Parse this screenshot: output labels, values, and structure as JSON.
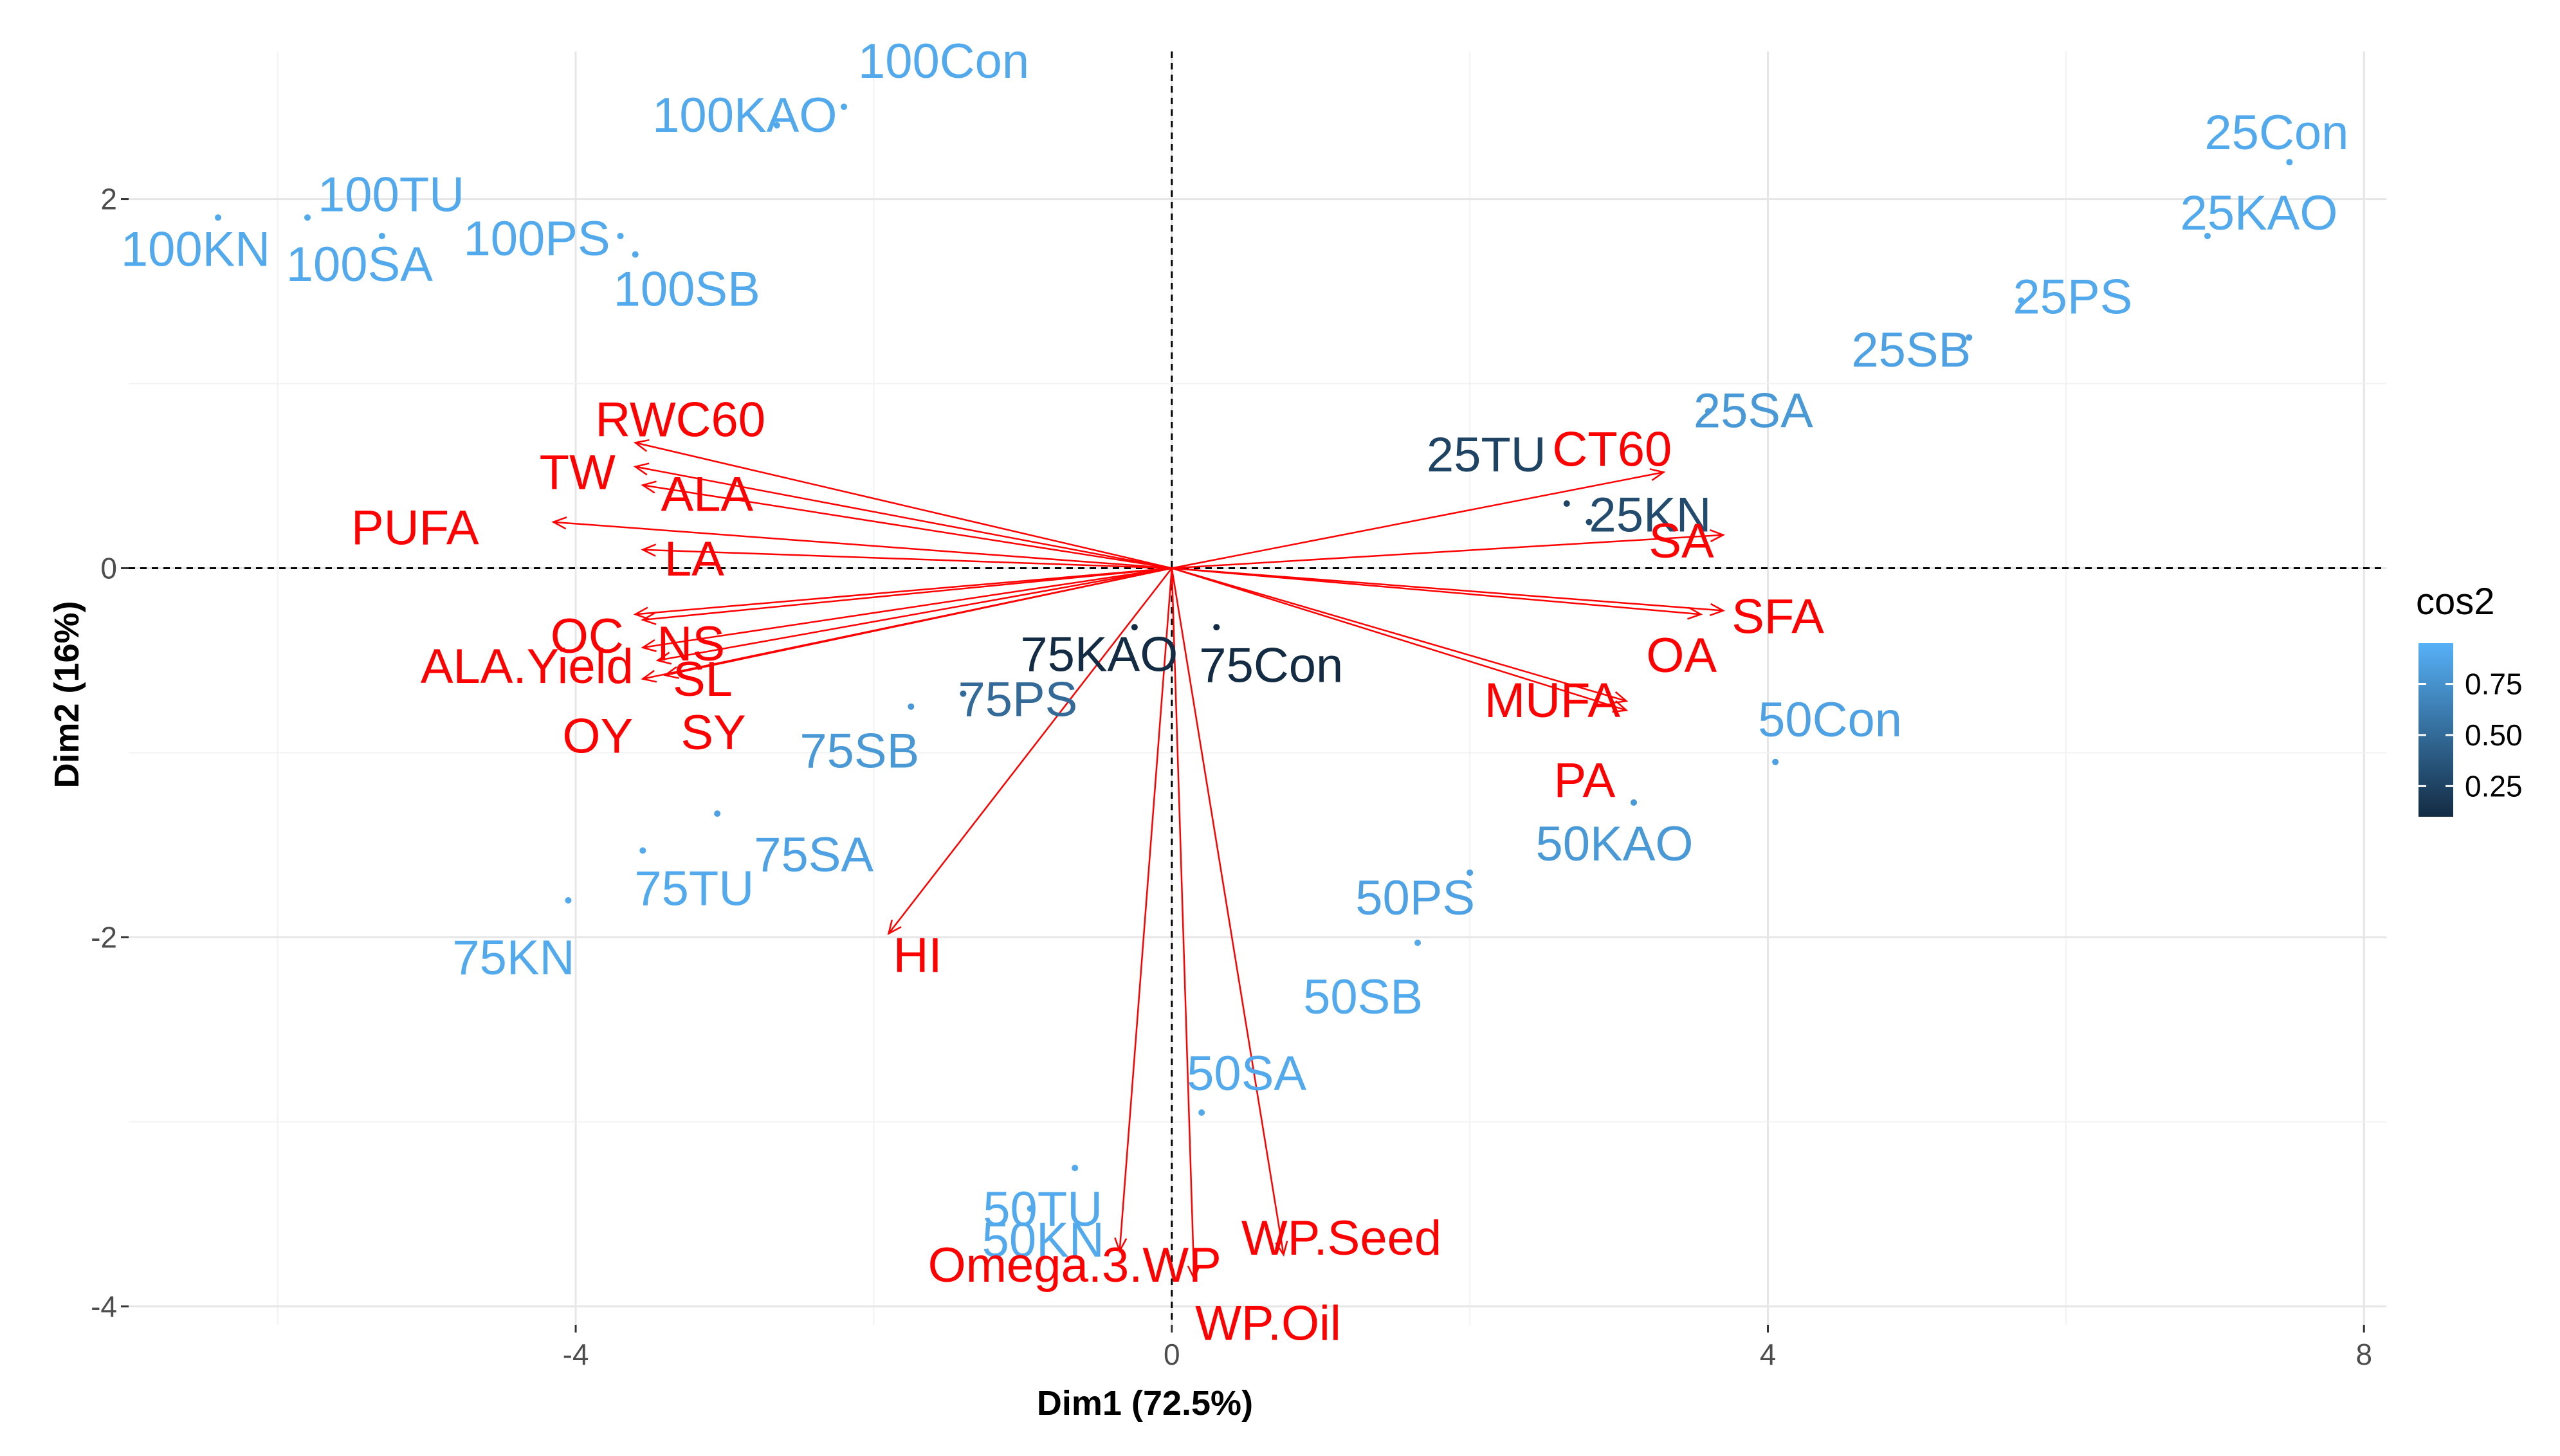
{
  "chart_data": {
    "type": "scatter",
    "subtype": "pca-biplot",
    "xlabel": "Dim1 (72.5%)",
    "ylabel": "Dim2 (16%)",
    "xlim": [
      -7.0,
      8.15
    ],
    "ylim": [
      -4.1,
      2.8
    ],
    "x_ticks": [
      -4,
      0,
      4,
      8
    ],
    "y_ticks": [
      -4,
      -2,
      0,
      2
    ],
    "x_tick_labels": [
      "-4",
      "0",
      "4",
      "8"
    ],
    "y_tick_labels": [
      "-4",
      "-2",
      "0",
      "2"
    ],
    "grid": true,
    "reference_lines": [
      {
        "axis": "x",
        "value": 0,
        "style": "dashed"
      },
      {
        "axis": "y",
        "value": 0,
        "style": "dashed"
      }
    ],
    "legend": {
      "title": "cos2",
      "position": "right",
      "ticks": [
        "0.75",
        "0.50",
        "0.25"
      ],
      "tick_values": [
        0.75,
        0.5,
        0.25
      ],
      "range": [
        0.1,
        0.95
      ],
      "color_low": "#132B43",
      "color_high": "#56B1F7"
    },
    "individuals": [
      {
        "name": "100Con",
        "x": -2.2,
        "y": 2.5,
        "cos2": 0.9
      },
      {
        "name": "100KAO",
        "x": -2.65,
        "y": 2.4,
        "cos2": 0.9
      },
      {
        "name": "100TU",
        "x": -5.8,
        "y": 1.9,
        "cos2": 0.9
      },
      {
        "name": "100KN",
        "x": -6.4,
        "y": 1.9,
        "cos2": 0.9
      },
      {
        "name": "100SA",
        "x": -5.3,
        "y": 1.8,
        "cos2": 0.9
      },
      {
        "name": "100PS",
        "x": -3.7,
        "y": 1.8,
        "cos2": 0.9
      },
      {
        "name": "100SB",
        "x": -3.6,
        "y": 1.7,
        "cos2": 0.9
      },
      {
        "name": "25Con",
        "x": 7.5,
        "y": 2.2,
        "cos2": 0.9
      },
      {
        "name": "25KAO",
        "x": 6.95,
        "y": 1.8,
        "cos2": 0.9
      },
      {
        "name": "25PS",
        "x": 5.7,
        "y": 1.45,
        "cos2": 0.9
      },
      {
        "name": "25SB",
        "x": 5.35,
        "y": 1.25,
        "cos2": 0.85
      },
      {
        "name": "25SA",
        "x": 3.6,
        "y": 0.85,
        "cos2": 0.8
      },
      {
        "name": "25TU",
        "x": 2.65,
        "y": 0.35,
        "cos2": 0.25
      },
      {
        "name": "25KN",
        "x": 2.8,
        "y": 0.25,
        "cos2": 0.3
      },
      {
        "name": "75KAO",
        "x": -0.25,
        "y": -0.32,
        "cos2": 0.1
      },
      {
        "name": "75Con",
        "x": 0.3,
        "y": -0.32,
        "cos2": 0.1
      },
      {
        "name": "75PS",
        "x": -1.4,
        "y": -0.68,
        "cos2": 0.5
      },
      {
        "name": "75SB",
        "x": -1.75,
        "y": -0.75,
        "cos2": 0.8
      },
      {
        "name": "75SA",
        "x": -3.05,
        "y": -1.33,
        "cos2": 0.85
      },
      {
        "name": "75TU",
        "x": -3.55,
        "y": -1.53,
        "cos2": 0.9
      },
      {
        "name": "75KN",
        "x": -4.05,
        "y": -1.8,
        "cos2": 0.9
      },
      {
        "name": "50Con",
        "x": 4.05,
        "y": -1.05,
        "cos2": 0.85
      },
      {
        "name": "50KAO",
        "x": 3.1,
        "y": -1.27,
        "cos2": 0.8
      },
      {
        "name": "50PS",
        "x": 2.0,
        "y": -1.65,
        "cos2": 0.85
      },
      {
        "name": "50SB",
        "x": 1.65,
        "y": -2.03,
        "cos2": 0.9
      },
      {
        "name": "50SA",
        "x": 0.2,
        "y": -2.95,
        "cos2": 0.9
      },
      {
        "name": "50TU",
        "x": -0.65,
        "y": -3.25,
        "cos2": 0.9
      },
      {
        "name": "50KN",
        "x": -0.95,
        "y": -3.47,
        "cos2": 0.9
      }
    ],
    "variables": [
      {
        "name": "RWC60",
        "x": -3.6,
        "y": 0.68
      },
      {
        "name": "TW",
        "x": -3.6,
        "y": 0.55
      },
      {
        "name": "ALA",
        "x": -3.55,
        "y": 0.45
      },
      {
        "name": "PUFA",
        "x": -4.15,
        "y": 0.25
      },
      {
        "name": "LA",
        "x": -3.55,
        "y": 0.1
      },
      {
        "name": "OC",
        "x": -3.6,
        "y": -0.25
      },
      {
        "name": "NS",
        "x": -3.55,
        "y": -0.28
      },
      {
        "name": "ALA.Yield",
        "x": -3.55,
        "y": -0.43
      },
      {
        "name": "SL",
        "x": -3.45,
        "y": -0.5
      },
      {
        "name": "OY",
        "x": -3.55,
        "y": -0.6
      },
      {
        "name": "SY",
        "x": -3.4,
        "y": -0.58
      },
      {
        "name": "CT60",
        "x": 3.3,
        "y": 0.52
      },
      {
        "name": "SA",
        "x": 3.7,
        "y": 0.18
      },
      {
        "name": "SFA",
        "x": 3.7,
        "y": -0.23
      },
      {
        "name": "OA",
        "x": 3.55,
        "y": -0.25
      },
      {
        "name": "MUFA",
        "x": 3.05,
        "y": -0.72
      },
      {
        "name": "PA",
        "x": 3.05,
        "y": -0.77
      },
      {
        "name": "HI",
        "x": -1.9,
        "y": -1.98
      },
      {
        "name": "Omega.3.WP",
        "x": -0.35,
        "y": -3.7
      },
      {
        "name": "WP.Seed",
        "x": 0.75,
        "y": -3.72
      },
      {
        "name": "WP.Oil",
        "x": 0.15,
        "y": -3.85
      }
    ]
  }
}
